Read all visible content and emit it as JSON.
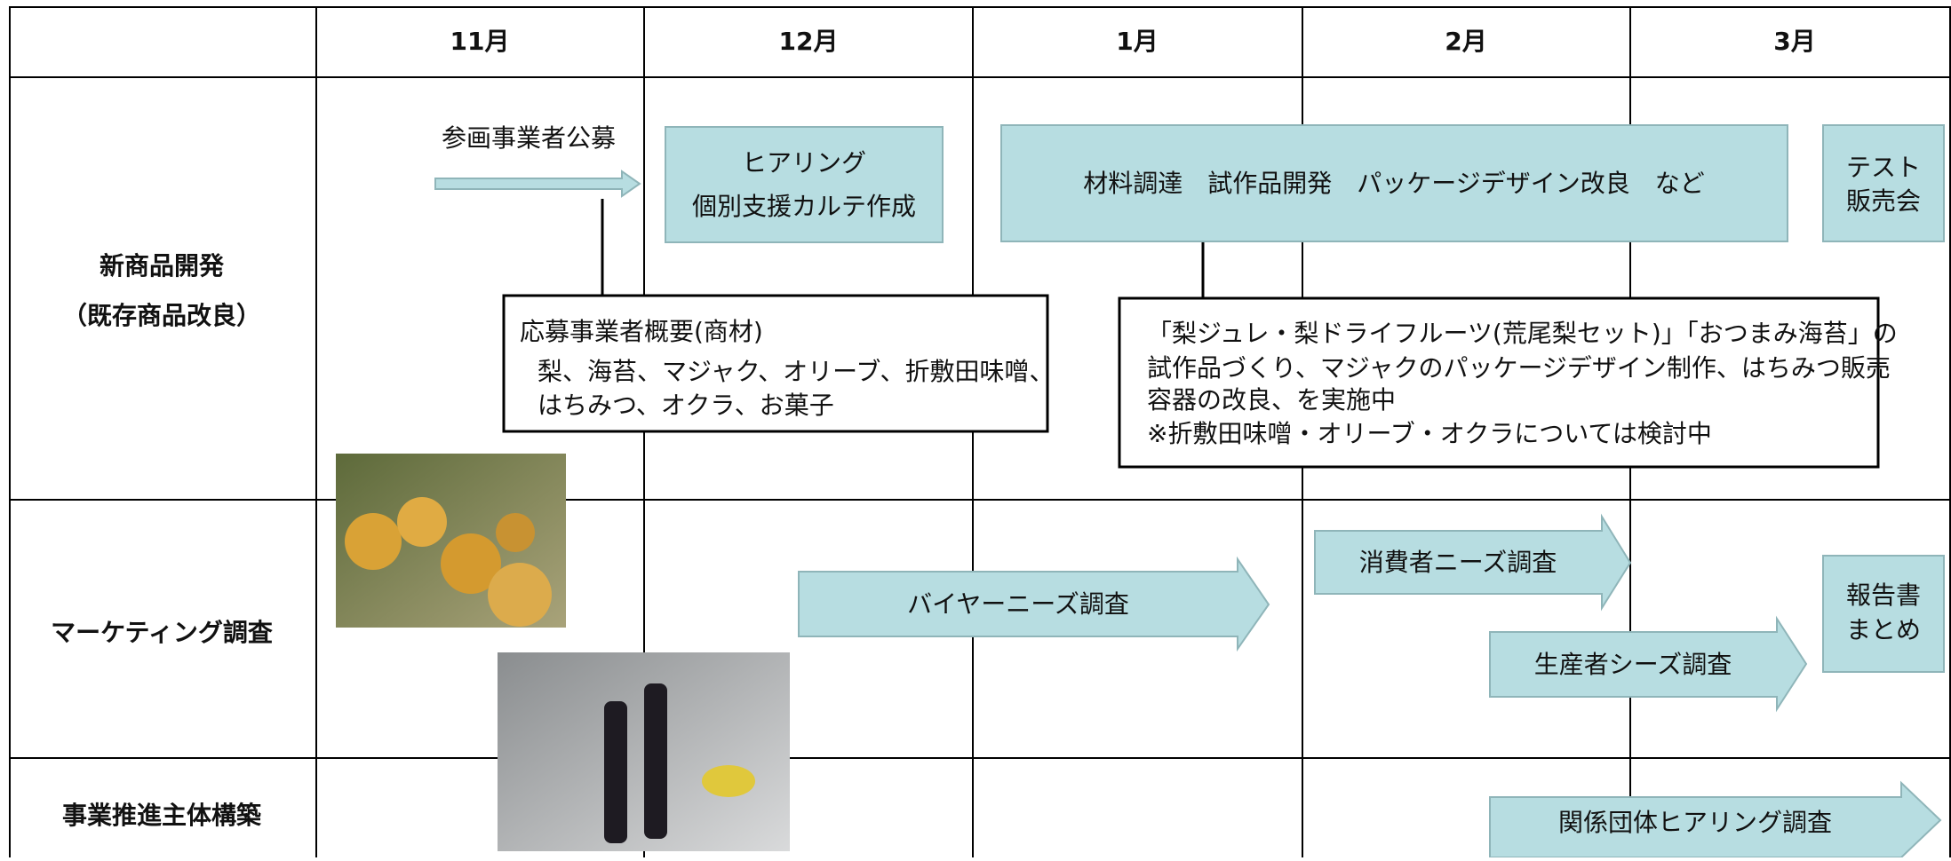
{
  "header": {
    "months": [
      "11月",
      "12月",
      "1月",
      "2月",
      "3月"
    ]
  },
  "rows": [
    {
      "label": [
        "新商品開発",
        "（既存商品改良）"
      ]
    },
    {
      "label": [
        "マーケティング調査"
      ]
    },
    {
      "label": [
        "事業推進主体構築"
      ]
    }
  ],
  "new_product": {
    "recruitment": "参画事業者公募",
    "hearing": [
      "ヒアリング",
      "個別支援カルテ作成"
    ],
    "development": "材料調達　試作品開発　パッケージデザイン改良　など",
    "test_sale": [
      "テスト",
      "販売会"
    ],
    "applicants_note": [
      "応募事業者概要(商材)",
      "梨、海苔、マジャク、オリーブ、折敷田味噌、",
      "はちみつ、オクラ、お菓子"
    ],
    "progress_note": [
      "「梨ジュレ・梨ドライフルーツ(荒尾梨セット)」「おつまみ海苔」の",
      "試作品づくり、マジャクのパッケージデザイン制作、はちみつ販売",
      "容器の改良、を実施中",
      "※折敷田味噌・オリーブ・オクラについては検討中"
    ]
  },
  "marketing": {
    "buyer": "バイヤーニーズ調査",
    "consumer": "消費者ニーズ調査",
    "producer": "生産者シーズ調査",
    "report": [
      "報告書",
      "まとめ"
    ]
  },
  "structure": {
    "hearing": "関係団体ヒアリング調査"
  }
}
